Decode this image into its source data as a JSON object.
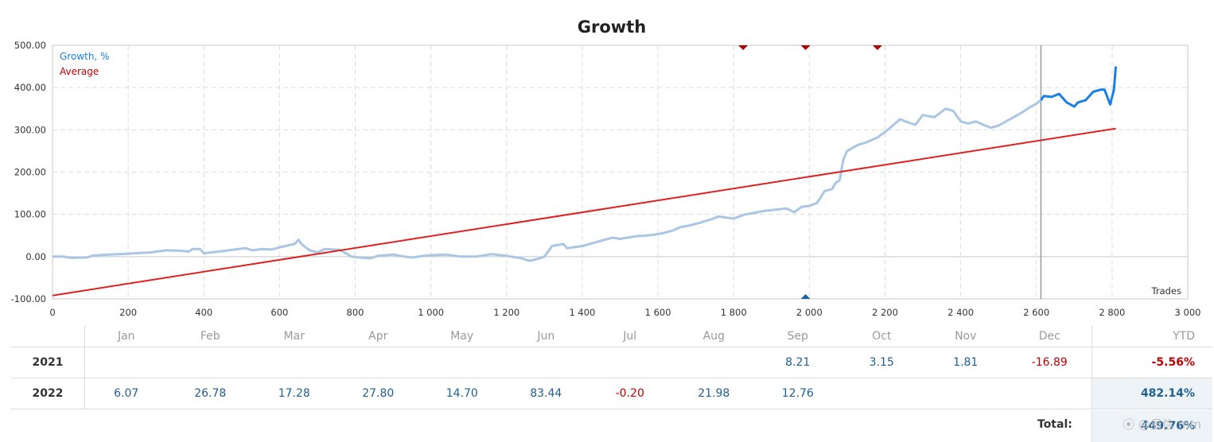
{
  "title": "Growth",
  "legend": {
    "growth": "Growth, %",
    "average": "Average"
  },
  "x_axis_label": "Trades",
  "colors": {
    "growth_light": "#a9c6e4",
    "growth_recent": "#1a7fe8",
    "average": "#e02020",
    "marker_top": "#b00000",
    "marker_bottom": "#1a64a8",
    "positive": "#1e5f96",
    "negative": "#c00000"
  },
  "chart_data": {
    "type": "line",
    "title": "Growth",
    "xlabel": "Trades",
    "ylabel": "",
    "xlim": [
      0,
      3000
    ],
    "ylim": [
      -100,
      500
    ],
    "x_ticks": [
      "0",
      "200",
      "400",
      "600",
      "800",
      "1 000",
      "1 200",
      "1 400",
      "1 600",
      "1 800",
      "2 000",
      "2 200",
      "2 400",
      "2 600",
      "2 800",
      "3 000"
    ],
    "x_tick_values": [
      0,
      200,
      400,
      600,
      800,
      1000,
      1200,
      1400,
      1600,
      1800,
      2000,
      2200,
      2400,
      2600,
      2800,
      3000
    ],
    "y_ticks": [
      "500.00",
      "400.00",
      "300.00",
      "200.00",
      "100.00",
      "0.00",
      "-100.00"
    ],
    "y_tick_values": [
      500,
      400,
      300,
      200,
      100,
      0,
      -100
    ],
    "grid": true,
    "legend_position": "top-left",
    "split_x": 2612,
    "series": [
      {
        "name": "Growth, %",
        "points": [
          [
            0,
            0
          ],
          [
            30,
            0
          ],
          [
            50,
            -3
          ],
          [
            90,
            -2
          ],
          [
            110,
            3
          ],
          [
            150,
            5
          ],
          [
            200,
            7
          ],
          [
            260,
            10
          ],
          [
            300,
            15
          ],
          [
            340,
            14
          ],
          [
            360,
            12
          ],
          [
            370,
            18
          ],
          [
            390,
            18
          ],
          [
            400,
            8
          ],
          [
            420,
            10
          ],
          [
            450,
            13
          ],
          [
            490,
            18
          ],
          [
            510,
            20
          ],
          [
            530,
            15
          ],
          [
            550,
            18
          ],
          [
            580,
            17
          ],
          [
            600,
            22
          ],
          [
            640,
            30
          ],
          [
            650,
            40
          ],
          [
            660,
            28
          ],
          [
            680,
            15
          ],
          [
            700,
            10
          ],
          [
            720,
            18
          ],
          [
            760,
            16
          ],
          [
            790,
            0
          ],
          [
            810,
            -2
          ],
          [
            840,
            -4
          ],
          [
            860,
            2
          ],
          [
            900,
            5
          ],
          [
            930,
            0
          ],
          [
            950,
            -2
          ],
          [
            990,
            3
          ],
          [
            1040,
            5
          ],
          [
            1080,
            0
          ],
          [
            1120,
            0
          ],
          [
            1160,
            6
          ],
          [
            1200,
            2
          ],
          [
            1240,
            -4
          ],
          [
            1260,
            -10
          ],
          [
            1280,
            -6
          ],
          [
            1300,
            0
          ],
          [
            1320,
            25
          ],
          [
            1350,
            30
          ],
          [
            1360,
            20
          ],
          [
            1400,
            25
          ],
          [
            1440,
            35
          ],
          [
            1480,
            45
          ],
          [
            1500,
            42
          ],
          [
            1540,
            48
          ],
          [
            1570,
            50
          ],
          [
            1590,
            52
          ],
          [
            1610,
            55
          ],
          [
            1640,
            62
          ],
          [
            1660,
            70
          ],
          [
            1680,
            73
          ],
          [
            1710,
            80
          ],
          [
            1740,
            88
          ],
          [
            1760,
            95
          ],
          [
            1800,
            90
          ],
          [
            1830,
            100
          ],
          [
            1850,
            103
          ],
          [
            1880,
            108
          ],
          [
            1910,
            111
          ],
          [
            1940,
            114
          ],
          [
            1960,
            105
          ],
          [
            1980,
            118
          ],
          [
            2000,
            120
          ],
          [
            2020,
            127
          ],
          [
            2030,
            140
          ],
          [
            2040,
            155
          ],
          [
            2060,
            160
          ],
          [
            2070,
            175
          ],
          [
            2080,
            180
          ],
          [
            2090,
            230
          ],
          [
            2100,
            250
          ],
          [
            2130,
            265
          ],
          [
            2150,
            270
          ],
          [
            2180,
            282
          ],
          [
            2200,
            295
          ],
          [
            2220,
            310
          ],
          [
            2240,
            325
          ],
          [
            2260,
            318
          ],
          [
            2280,
            312
          ],
          [
            2300,
            335
          ],
          [
            2330,
            330
          ],
          [
            2360,
            350
          ],
          [
            2380,
            345
          ],
          [
            2400,
            320
          ],
          [
            2420,
            315
          ],
          [
            2440,
            320
          ],
          [
            2460,
            312
          ],
          [
            2480,
            305
          ],
          [
            2500,
            310
          ],
          [
            2520,
            320
          ],
          [
            2540,
            330
          ],
          [
            2560,
            340
          ],
          [
            2580,
            352
          ],
          [
            2600,
            362
          ],
          [
            2612,
            370
          ]
        ]
      },
      {
        "name": "Growth, %",
        "points": [
          [
            2612,
            370
          ],
          [
            2620,
            380
          ],
          [
            2640,
            378
          ],
          [
            2660,
            385
          ],
          [
            2680,
            365
          ],
          [
            2700,
            355
          ],
          [
            2710,
            365
          ],
          [
            2730,
            370
          ],
          [
            2750,
            390
          ],
          [
            2770,
            395
          ],
          [
            2780,
            395
          ],
          [
            2795,
            360
          ],
          [
            2805,
            395
          ],
          [
            2810,
            450
          ]
        ]
      },
      {
        "name": "Average",
        "points": [
          [
            0,
            -92
          ],
          [
            2810,
            303
          ]
        ]
      }
    ],
    "markers_top": [
      1825,
      1990,
      2180
    ],
    "markers_bottom": [
      1990
    ]
  },
  "table": {
    "months": [
      "Jan",
      "Feb",
      "Mar",
      "Apr",
      "May",
      "Jun",
      "Jul",
      "Aug",
      "Sep",
      "Oct",
      "Nov",
      "Dec"
    ],
    "ytd_header": "YTD",
    "rows": [
      {
        "year": "2021",
        "values": [
          "",
          "",
          "",
          "",
          "",
          "",
          "",
          "",
          "8.21",
          "3.15",
          "1.81",
          "-16.89"
        ],
        "ytd": "-5.56%"
      },
      {
        "year": "2022",
        "values": [
          "6.07",
          "26.78",
          "17.28",
          "27.80",
          "14.70",
          "83.44",
          "-0.20",
          "21.98",
          "12.76",
          "",
          "",
          ""
        ],
        "ytd": "482.14%"
      }
    ],
    "total_label": "Total:",
    "total_value": "449.76%"
  },
  "watermark": "⦿ @易信 mm"
}
